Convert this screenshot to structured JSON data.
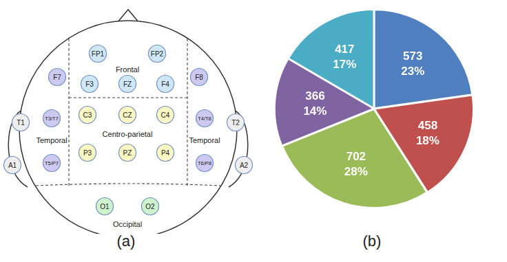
{
  "diagram": {
    "caption": "(a)",
    "regions": [
      {
        "name": "Frontal",
        "color": "#cfe8f8",
        "electrodes": [
          "FP1",
          "FP2",
          "F3",
          "FZ",
          "F4"
        ]
      },
      {
        "name": "Temporal",
        "color": "#cdc9f0",
        "electrodes": [
          "F7",
          "T3/T7",
          "T5/P7"
        ]
      },
      {
        "name": "Temporal",
        "color": "#cdc9f0",
        "electrodes": [
          "F8",
          "T4/T8",
          "T6/P8"
        ]
      },
      {
        "name": "Centro-parietal",
        "color": "#fbf8c4",
        "electrodes": [
          "C3",
          "CZ",
          "C4",
          "P3",
          "PZ",
          "P4"
        ]
      },
      {
        "name": "Occipital",
        "color": "#cdf2cd",
        "electrodes": [
          "O1",
          "O2"
        ]
      }
    ],
    "outside": {
      "color": "#eeeeee",
      "electrodes": [
        "T1",
        "A1",
        "T2",
        "A2"
      ]
    }
  },
  "chart_data": {
    "type": "pie",
    "caption": "(b)",
    "values": [
      573,
      458,
      702,
      366,
      417
    ],
    "percent_labels": [
      "23%",
      "18%",
      "28%",
      "14%",
      "17%"
    ],
    "colors": [
      "#4f7fbe",
      "#c0504d",
      "#9bbb59",
      "#8064a2",
      "#4bacc6"
    ],
    "data_labels": true
  }
}
